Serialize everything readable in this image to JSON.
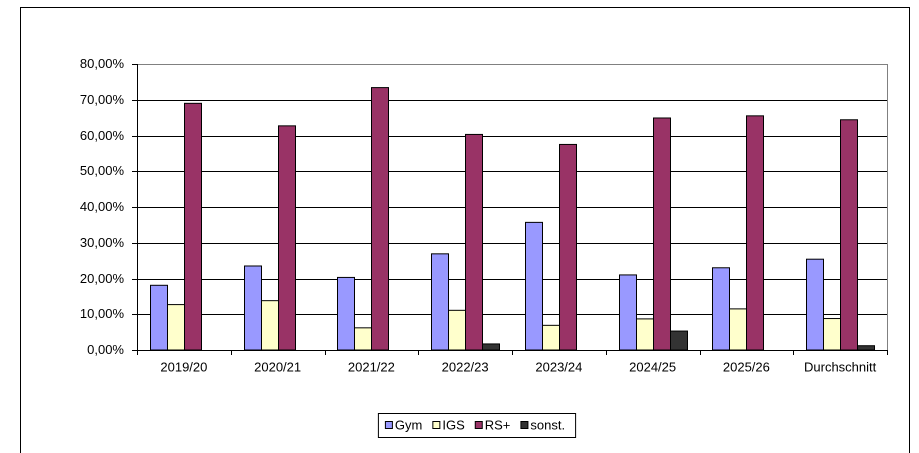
{
  "chart_data": {
    "type": "bar",
    "categories": [
      "2019/20",
      "2020/21",
      "2021/22",
      "2022/23",
      "2023/24",
      "2024/25",
      "2025/26",
      "Durchschnitt"
    ],
    "series": [
      {
        "name": "Gym",
        "color": "#9999ff",
        "values": [
          18.1,
          23.5,
          20.3,
          26.9,
          35.7,
          21.0,
          23.0,
          25.4
        ]
      },
      {
        "name": "IGS",
        "color": "#ffffcc",
        "values": [
          12.7,
          13.8,
          6.2,
          11.1,
          6.9,
          8.7,
          11.5,
          8.8
        ]
      },
      {
        "name": "RS+",
        "color": "#993366",
        "values": [
          69.0,
          62.7,
          73.4,
          60.3,
          57.5,
          64.9,
          65.5,
          64.4
        ]
      },
      {
        "name": "sonst.",
        "color": "#333333",
        "values": [
          0,
          0,
          0,
          1.7,
          0,
          5.3,
          0,
          1.2
        ]
      }
    ],
    "ylim": [
      0,
      80
    ],
    "yticks": [
      {
        "value": 0,
        "label": "0,00%"
      },
      {
        "value": 10,
        "label": "10,00%"
      },
      {
        "value": 20,
        "label": "20,00%"
      },
      {
        "value": 30,
        "label": "30,00%"
      },
      {
        "value": 40,
        "label": "40,00%"
      },
      {
        "value": 50,
        "label": "50,00%"
      },
      {
        "value": 60,
        "label": "60,00%"
      },
      {
        "value": 70,
        "label": "70,00%"
      },
      {
        "value": 80,
        "label": "80,00%"
      }
    ],
    "grid": true,
    "legend": "bottom"
  }
}
